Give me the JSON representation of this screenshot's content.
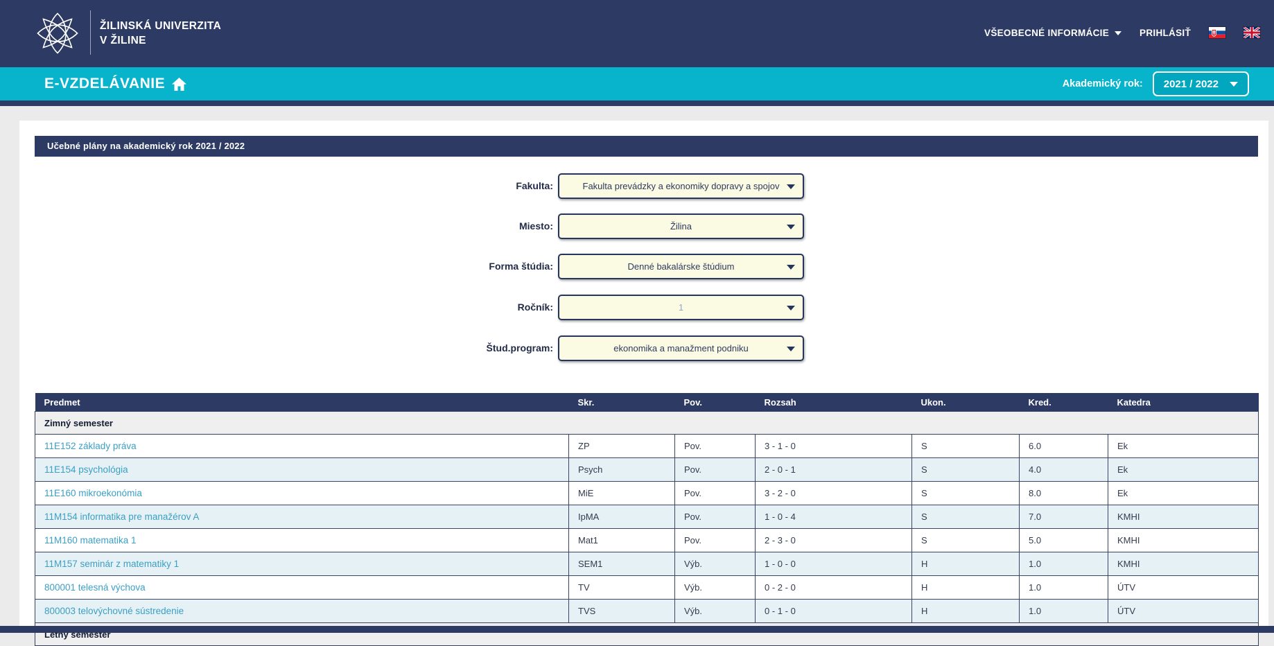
{
  "header": {
    "university_name_line1": "ŽILINSKÁ UNIVERZITA",
    "university_name_line2": "V ŽILINE",
    "nav": {
      "general_info_label": "VŠEOBECNÉ INFORMÁCIE",
      "login_label": "PRIHLÁSIŤ",
      "language_flags": [
        "slovak-flag",
        "uk-flag"
      ]
    }
  },
  "subheader": {
    "app_title": "E-VZDELÁVANIE",
    "academic_year_label": "Akademický rok:",
    "academic_year_value": "2021 / 2022"
  },
  "main": {
    "section_title": "Učebné plány na akademický rok 2021 / 2022",
    "filters": [
      {
        "label": "Fakulta:",
        "value": "Fakulta prevádzky a ekonomiky dopravy a spojov"
      },
      {
        "label": "Miesto:",
        "value": "Žilina"
      },
      {
        "label": "Forma štúdia:",
        "value": "Denné bakalárske štúdium"
      },
      {
        "label": "Ročník:",
        "value": "1",
        "muted": true
      },
      {
        "label": "Štud.program:",
        "value": "ekonomika a manažment podniku"
      }
    ],
    "table": {
      "columns": [
        "Predmet",
        "Skr.",
        "Pov.",
        "Rozsah",
        "Ukon.",
        "Kred.",
        "Katedra"
      ],
      "sections": [
        {
          "name": "Zimný semester",
          "rows": [
            [
              "11E152 základy práva",
              "ZP",
              "Pov.",
              "3 - 1 - 0",
              "S",
              "6.0",
              "Ek"
            ],
            [
              "11E154 psychológia",
              "Psych",
              "Pov.",
              "2 - 0 - 1",
              "S",
              "4.0",
              "Ek"
            ],
            [
              "11E160 mikroekonómia",
              "MiE",
              "Pov.",
              "3 - 2 - 0",
              "S",
              "8.0",
              "Ek"
            ],
            [
              "11M154 informatika pre manažérov A",
              "IpMA",
              "Pov.",
              "1 - 0 - 4",
              "S",
              "7.0",
              "KMHI"
            ],
            [
              "11M160 matematika 1",
              "Mat1",
              "Pov.",
              "2 - 3 - 0",
              "S",
              "5.0",
              "KMHI"
            ],
            [
              "11M157 seminár z matematiky 1",
              "SEM1",
              "Výb.",
              "1 - 0 - 0",
              "H",
              "1.0",
              "KMHI"
            ],
            [
              "800001 telesná výchova",
              "TV",
              "Výb.",
              "0 - 2 - 0",
              "H",
              "1.0",
              "ÚTV"
            ],
            [
              "800003 telovýchovné sústredenie",
              "TVS",
              "Výb.",
              "0 - 1 - 0",
              "H",
              "1.0",
              "ÚTV"
            ]
          ]
        },
        {
          "name": "Letný semester",
          "rows": []
        }
      ]
    }
  },
  "colors": {
    "navy": "#2d3b64",
    "cyan": "#07b4cc",
    "link_blue": "#3b9fc4",
    "row_alt_blue": "#e6f1f6",
    "section_row_gray": "#efefef",
    "select_cream": "#fbfae2",
    "page_gray": "#ebebeb"
  }
}
